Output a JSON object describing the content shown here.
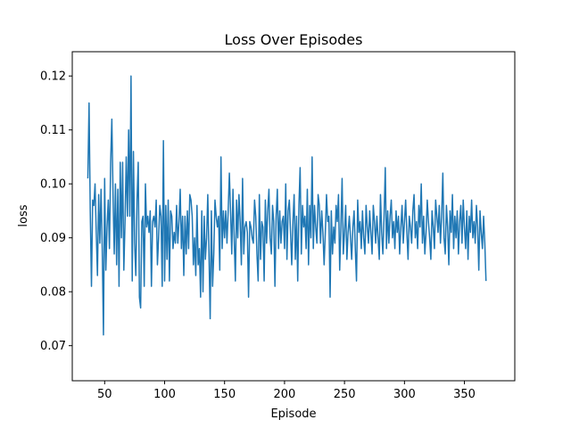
{
  "chart_data": {
    "type": "line",
    "title": "Loss Over Episodes",
    "xlabel": "Episode",
    "ylabel": "loss",
    "xlim": [
      23,
      392
    ],
    "ylim": [
      0.0635,
      0.1245
    ],
    "xticks": [
      50,
      100,
      150,
      200,
      250,
      300,
      350
    ],
    "yticks": [
      0.07,
      0.08,
      0.09,
      0.1,
      0.11,
      0.12
    ],
    "ytick_labels": [
      "0.07",
      "0.08",
      "0.09",
      "0.10",
      "0.11",
      "0.12"
    ],
    "grid": false,
    "series": [
      {
        "color": "#1f77b4",
        "x_start": 36,
        "x_step": 1,
        "values": [
          0.101,
          0.115,
          0.095,
          0.081,
          0.097,
          0.096,
          0.1,
          0.091,
          0.083,
          0.098,
          0.089,
          0.099,
          0.088,
          0.072,
          0.101,
          0.084,
          0.092,
          0.097,
          0.088,
          0.104,
          0.112,
          0.098,
          0.087,
          0.1,
          0.085,
          0.099,
          0.081,
          0.104,
          0.09,
          0.104,
          0.084,
          0.093,
          0.105,
          0.094,
          0.11,
          0.094,
          0.12,
          0.082,
          0.106,
          0.089,
          0.083,
          0.097,
          0.104,
          0.079,
          0.077,
          0.093,
          0.094,
          0.081,
          0.1,
          0.092,
          0.094,
          0.091,
          0.095,
          0.081,
          0.093,
          0.094,
          0.092,
          0.097,
          0.085,
          0.09,
          0.096,
          0.094,
          0.081,
          0.108,
          0.082,
          0.096,
          0.086,
          0.097,
          0.082,
          0.095,
          0.094,
          0.088,
          0.091,
          0.089,
          0.096,
          0.089,
          0.093,
          0.099,
          0.088,
          0.094,
          0.083,
          0.094,
          0.087,
          0.095,
          0.088,
          0.098,
          0.097,
          0.094,
          0.085,
          0.09,
          0.083,
          0.096,
          0.085,
          0.088,
          0.079,
          0.095,
          0.08,
          0.094,
          0.086,
          0.09,
          0.098,
          0.087,
          0.075,
          0.095,
          0.081,
          0.087,
          0.097,
          0.094,
          0.092,
          0.094,
          0.084,
          0.105,
          0.088,
          0.095,
          0.09,
          0.095,
          0.089,
          0.095,
          0.102,
          0.095,
          0.087,
          0.099,
          0.09,
          0.082,
          0.097,
          0.09,
          0.098,
          0.093,
          0.085,
          0.101,
          0.087,
          0.092,
          0.093,
          0.091,
          0.079,
          0.093,
          0.092,
          0.09,
          0.089,
          0.097,
          0.094,
          0.087,
          0.082,
          0.098,
          0.086,
          0.093,
          0.092,
          0.082,
          0.097,
          0.089,
          0.095,
          0.099,
          0.09,
          0.087,
          0.096,
          0.093,
          0.081,
          0.094,
          0.099,
          0.088,
          0.095,
          0.089,
          0.093,
          0.094,
          0.088,
          0.1,
          0.086,
          0.095,
          0.097,
          0.091,
          0.085,
          0.093,
          0.098,
          0.086,
          0.094,
          0.082,
          0.096,
          0.103,
          0.087,
          0.096,
          0.092,
          0.094,
          0.088,
          0.099,
          0.085,
          0.096,
          0.09,
          0.105,
          0.088,
          0.096,
          0.092,
          0.089,
          0.098,
          0.096,
          0.089,
          0.095,
          0.091,
          0.085,
          0.091,
          0.098,
          0.093,
          0.094,
          0.079,
          0.095,
          0.087,
          0.092,
          0.089,
          0.096,
          0.093,
          0.098,
          0.084,
          0.092,
          0.101,
          0.087,
          0.091,
          0.096,
          0.086,
          0.091,
          0.094,
          0.09,
          0.086,
          0.092,
          0.095,
          0.088,
          0.082,
          0.097,
          0.091,
          0.093,
          0.088,
          0.095,
          0.09,
          0.087,
          0.096,
          0.092,
          0.089,
          0.095,
          0.091,
          0.087,
          0.096,
          0.093,
          0.089,
          0.094,
          0.09,
          0.086,
          0.098,
          0.091,
          0.087,
          0.094,
          0.103,
          0.088,
          0.095,
          0.089,
          0.094,
          0.097,
          0.09,
          0.093,
          0.088,
          0.095,
          0.091,
          0.094,
          0.087,
          0.092,
          0.096,
          0.089,
          0.093,
          0.097,
          0.091,
          0.086,
          0.094,
          0.092,
          0.089,
          0.095,
          0.098,
          0.09,
          0.093,
          0.088,
          0.096,
          0.092,
          0.1,
          0.089,
          0.094,
          0.087,
          0.091,
          0.097,
          0.093,
          0.09,
          0.086,
          0.095,
          0.092,
          0.088,
          0.097,
          0.094,
          0.091,
          0.096,
          0.089,
          0.094,
          0.102,
          0.09,
          0.087,
          0.096,
          0.092,
          0.085,
          0.095,
          0.091,
          0.098,
          0.088,
          0.094,
          0.09,
          0.095,
          0.087,
          0.093,
          0.096,
          0.089,
          0.097,
          0.092,
          0.088,
          0.095,
          0.086,
          0.094,
          0.091,
          0.097,
          0.09,
          0.093,
          0.089,
          0.096,
          0.092,
          0.084,
          0.095,
          0.091,
          0.088,
          0.094,
          0.089,
          0.082
        ]
      }
    ]
  }
}
